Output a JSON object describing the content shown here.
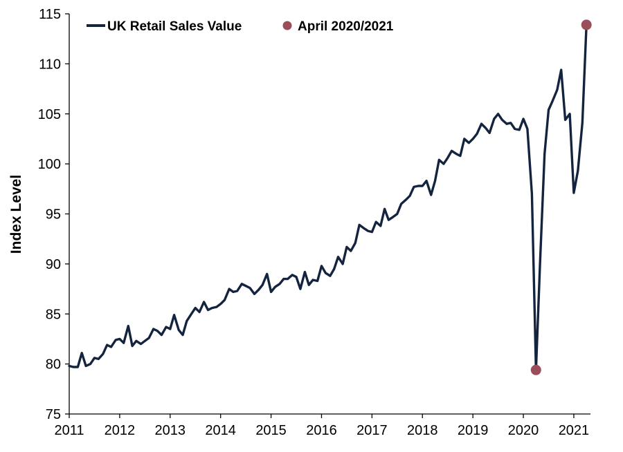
{
  "chart_data": {
    "type": "line",
    "title": "",
    "xlabel": "",
    "ylabel": "Index Level",
    "ylim": [
      75,
      115
    ],
    "yticks": [
      75,
      80,
      85,
      90,
      95,
      100,
      105,
      110,
      115
    ],
    "xlim": [
      2011,
      2021.33
    ],
    "xticks": [
      2011,
      2012,
      2013,
      2014,
      2015,
      2016,
      2017,
      2018,
      2019,
      2020,
      2021
    ],
    "grid": false,
    "legend": "top-left",
    "colors": {
      "line": "#14243f",
      "highlight": "#9b4d5a"
    },
    "series": [
      {
        "name": "UK Retail Sales Value",
        "x": [
          2011.0,
          2011.08,
          2011.17,
          2011.25,
          2011.33,
          2011.42,
          2011.5,
          2011.58,
          2011.67,
          2011.75,
          2011.83,
          2011.92,
          2012.0,
          2012.08,
          2012.17,
          2012.25,
          2012.33,
          2012.42,
          2012.5,
          2012.58,
          2012.67,
          2012.75,
          2012.83,
          2012.92,
          2013.0,
          2013.08,
          2013.17,
          2013.25,
          2013.33,
          2013.42,
          2013.5,
          2013.58,
          2013.67,
          2013.75,
          2013.83,
          2013.92,
          2014.0,
          2014.08,
          2014.17,
          2014.25,
          2014.33,
          2014.42,
          2014.5,
          2014.58,
          2014.67,
          2014.75,
          2014.83,
          2014.92,
          2015.0,
          2015.08,
          2015.17,
          2015.25,
          2015.33,
          2015.42,
          2015.5,
          2015.58,
          2015.67,
          2015.75,
          2015.83,
          2015.92,
          2016.0,
          2016.08,
          2016.17,
          2016.25,
          2016.33,
          2016.42,
          2016.5,
          2016.58,
          2016.67,
          2016.75,
          2016.83,
          2016.92,
          2017.0,
          2017.08,
          2017.17,
          2017.25,
          2017.33,
          2017.42,
          2017.5,
          2017.58,
          2017.67,
          2017.75,
          2017.83,
          2017.92,
          2018.0,
          2018.08,
          2018.17,
          2018.25,
          2018.33,
          2018.42,
          2018.5,
          2018.58,
          2018.67,
          2018.75,
          2018.83,
          2018.92,
          2019.0,
          2019.08,
          2019.17,
          2019.25,
          2019.33,
          2019.42,
          2019.5,
          2019.58,
          2019.67,
          2019.75,
          2019.83,
          2019.92,
          2020.0,
          2020.08,
          2020.17,
          2020.25,
          2020.33,
          2020.42,
          2020.5,
          2020.58,
          2020.67,
          2020.75,
          2020.83,
          2020.92,
          2021.0,
          2021.08,
          2021.17,
          2021.25
        ],
        "values": [
          79.8,
          79.7,
          79.7,
          81.1,
          79.8,
          80.0,
          80.6,
          80.5,
          81.0,
          81.9,
          81.7,
          82.4,
          82.5,
          82.1,
          83.8,
          81.8,
          82.3,
          82.0,
          82.3,
          82.6,
          83.5,
          83.3,
          82.9,
          83.7,
          83.5,
          84.9,
          83.4,
          82.9,
          84.3,
          85.0,
          85.6,
          85.2,
          86.2,
          85.4,
          85.6,
          85.7,
          86.0,
          86.4,
          87.5,
          87.2,
          87.3,
          88.0,
          87.8,
          87.6,
          87.0,
          87.4,
          87.9,
          89.0,
          87.2,
          87.7,
          88.0,
          88.5,
          88.5,
          88.9,
          88.7,
          87.5,
          89.2,
          87.9,
          88.4,
          88.3,
          89.8,
          89.1,
          88.8,
          89.5,
          90.7,
          90.0,
          91.7,
          91.3,
          92.1,
          93.9,
          93.6,
          93.3,
          93.2,
          94.2,
          93.8,
          95.5,
          94.4,
          94.7,
          95.0,
          96.0,
          96.4,
          96.8,
          97.7,
          97.8,
          97.8,
          98.3,
          96.9,
          98.3,
          100.4,
          100.0,
          100.6,
          101.3,
          101.0,
          100.8,
          102.5,
          102.1,
          102.5,
          103.0,
          104.0,
          103.6,
          103.1,
          104.5,
          105.0,
          104.4,
          104.0,
          104.1,
          103.5,
          103.4,
          104.5,
          103.5,
          97.0,
          79.4,
          90.0,
          101.0,
          105.4,
          106.3,
          107.4,
          109.4,
          104.4,
          105.0,
          97.1,
          99.3,
          104.1,
          113.9
        ]
      },
      {
        "name": "April 2020/2021",
        "x": [
          2020.25,
          2021.25
        ],
        "values": [
          79.4,
          113.9
        ]
      }
    ]
  }
}
